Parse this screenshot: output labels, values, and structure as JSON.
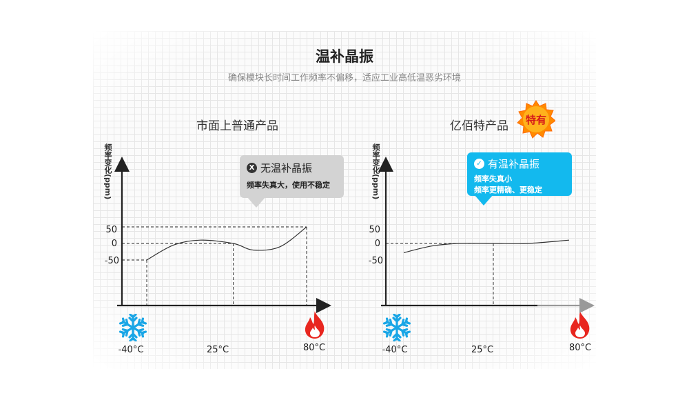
{
  "header": {
    "title": "温补晶振",
    "subtitle": "确保模块长时间工作频率不偏移，适应工业高低温恶劣环境"
  },
  "left": {
    "label": "市面上普通产品",
    "ylabel": "频率变化(ppm)",
    "bubble_title": "无温补晶振",
    "bubble_icon": "X",
    "bubble_lines": [
      "频率失真大，使用不稳定"
    ]
  },
  "right": {
    "label": "亿佰特产品",
    "badge": "特有",
    "ylabel": "频率变化(ppm)",
    "bubble_title": "有温补晶振",
    "bubble_icon": "✓",
    "bubble_lines": [
      "频率失真小",
      "频率更精确、更稳定"
    ]
  },
  "ticks": [
    "50",
    "0",
    "-50"
  ],
  "xticks": [
    "-40°C",
    "25°C",
    "80°C"
  ],
  "icons": {
    "cold": "snowflake-icon",
    "hot": "flame-icon"
  },
  "colors": {
    "accent_blue": "#13b9ee",
    "cold": "#1aa6e6",
    "hot": "#e8261f",
    "badge": "#ff8a00"
  },
  "chart_data": [
    {
      "type": "line",
      "title": "市面上普通产品",
      "xlabel": "",
      "ylabel": "频率变化(ppm)",
      "x": [
        -40,
        -20,
        0,
        25,
        40,
        60,
        80
      ],
      "y": [
        -50,
        -5,
        10,
        0,
        -20,
        -10,
        50
      ],
      "xticks": [
        "-40°C",
        "25°C",
        "80°C"
      ],
      "yticks": [
        50,
        0,
        -50
      ]
    },
    {
      "type": "line",
      "title": "亿佰特产品",
      "xlabel": "",
      "ylabel": "频率变化(ppm)",
      "x": [
        -40,
        -20,
        0,
        25,
        50,
        80
      ],
      "y": [
        -28,
        -8,
        0,
        0,
        0,
        10
      ],
      "xticks": [
        "-40°C",
        "25°C",
        "80°C"
      ],
      "yticks": [
        50,
        0,
        -50
      ]
    }
  ]
}
